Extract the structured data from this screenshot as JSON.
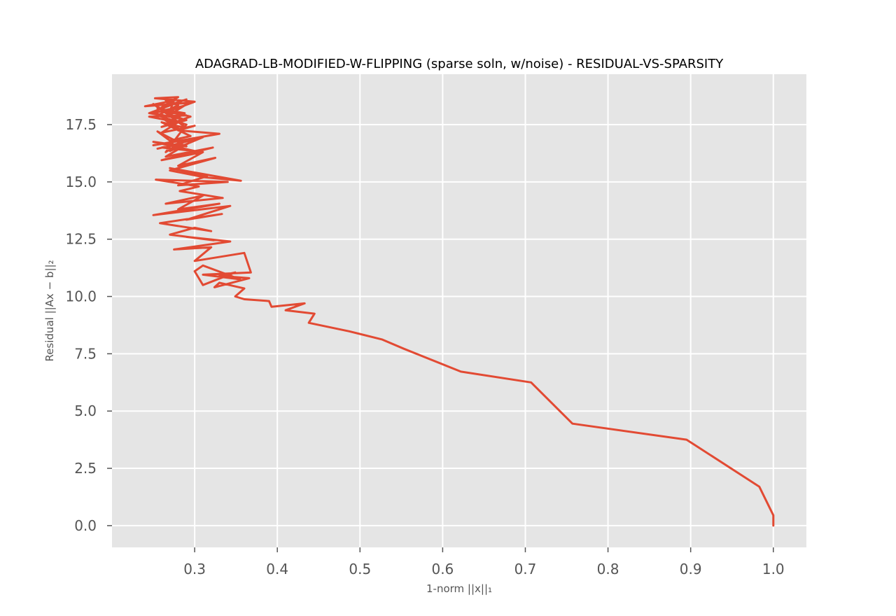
{
  "chart_data": {
    "type": "line",
    "title": "ADAGRAD-LB-MODIFIED-W-FLIPPING (sparse soln, w/noise) - RESIDUAL-VS-SPARSITY",
    "xlabel": "1-norm ||x||₁",
    "ylabel": "Residual ||Ax − b||₂",
    "xlim": [
      0.2,
      1.04
    ],
    "ylim": [
      -0.95,
      19.7
    ],
    "xticks": [
      0.3,
      0.4,
      0.5,
      0.6,
      0.7,
      0.8,
      0.9,
      1.0
    ],
    "xtick_labels": [
      "0.3",
      "0.4",
      "0.5",
      "0.6",
      "0.7",
      "0.8",
      "0.9",
      "1.0"
    ],
    "yticks": [
      0.0,
      2.5,
      5.0,
      7.5,
      10.0,
      12.5,
      15.0,
      17.5
    ],
    "ytick_labels": [
      "0.0",
      "2.5",
      "5.0",
      "7.5",
      "10.0",
      "12.5",
      "15.0",
      "17.5"
    ],
    "grid": true,
    "background": "#e5e5e5",
    "line_color": "#e24a33",
    "series": [
      {
        "x": [
          1.0,
          1.0,
          0.983,
          0.895,
          0.757,
          0.707,
          0.622,
          0.553,
          0.527,
          0.487,
          0.438,
          0.445,
          0.41,
          0.433,
          0.393,
          0.39,
          0.36,
          0.349,
          0.36,
          0.33,
          0.324,
          0.366,
          0.33,
          0.349,
          0.31,
          0.3,
          0.31,
          0.355,
          0.31,
          0.368,
          0.36,
          0.3,
          0.32,
          0.275,
          0.343,
          0.29,
          0.323,
          0.27,
          0.3,
          0.32,
          0.258,
          0.333,
          0.29,
          0.343,
          0.25,
          0.33,
          0.28,
          0.31,
          0.265,
          0.334,
          0.282,
          0.305,
          0.253,
          0.34,
          0.28,
          0.315,
          0.27,
          0.356,
          0.312,
          0.27,
          0.325,
          0.28,
          0.31,
          0.26,
          0.322,
          0.265,
          0.3,
          0.255,
          0.285,
          0.27,
          0.31,
          0.25,
          0.33,
          0.28,
          0.3,
          0.26,
          0.28,
          0.245,
          0.29,
          0.26,
          0.285,
          0.25,
          0.29,
          0.26,
          0.295,
          0.255,
          0.288,
          0.268,
          0.282,
          0.262,
          0.293,
          0.24,
          0.275,
          0.27,
          0.3,
          0.252,
          0.28,
          0.26,
          0.29,
          0.245,
          0.285,
          0.27,
          0.25,
          0.29,
          0.26,
          0.295,
          0.27,
          0.255,
          0.29,
          0.25,
          0.3,
          0.26,
          0.28,
          0.265,
          0.29,
          0.255,
          0.28,
          0.265
        ],
        "y": [
          0.0,
          0.45,
          1.7,
          3.75,
          4.45,
          6.25,
          6.72,
          7.72,
          8.12,
          8.48,
          8.85,
          9.25,
          9.4,
          9.7,
          9.55,
          9.8,
          9.88,
          10.0,
          10.35,
          10.6,
          10.4,
          10.8,
          10.9,
          11.05,
          10.5,
          11.1,
          11.35,
          10.75,
          10.95,
          11.05,
          11.9,
          11.55,
          12.15,
          12.05,
          12.4,
          12.6,
          12.45,
          12.7,
          13.0,
          12.85,
          13.2,
          13.6,
          13.35,
          13.95,
          13.55,
          14.05,
          13.8,
          14.4,
          14.05,
          14.3,
          14.6,
          14.8,
          15.1,
          15.0,
          14.85,
          15.25,
          15.6,
          15.05,
          15.2,
          15.5,
          16.05,
          15.7,
          16.3,
          15.95,
          16.5,
          16.1,
          16.85,
          16.45,
          16.7,
          16.35,
          16.95,
          16.6,
          17.1,
          17.25,
          17.45,
          17.15,
          17.6,
          17.85,
          17.9,
          18.1,
          18.3,
          18.0,
          17.7,
          17.4,
          17.85,
          18.2,
          18.0,
          17.55,
          17.3,
          17.75,
          18.45,
          18.3,
          18.55,
          18.1,
          18.5,
          18.65,
          18.7,
          18.25,
          18.6,
          18.0,
          17.75,
          17.95,
          18.4,
          17.35,
          17.6,
          17.0,
          16.8,
          17.2,
          16.55,
          16.75,
          16.35,
          16.5,
          16.65,
          16.3,
          17.5,
          17.9,
          18.35,
          18.55
        ]
      }
    ]
  }
}
